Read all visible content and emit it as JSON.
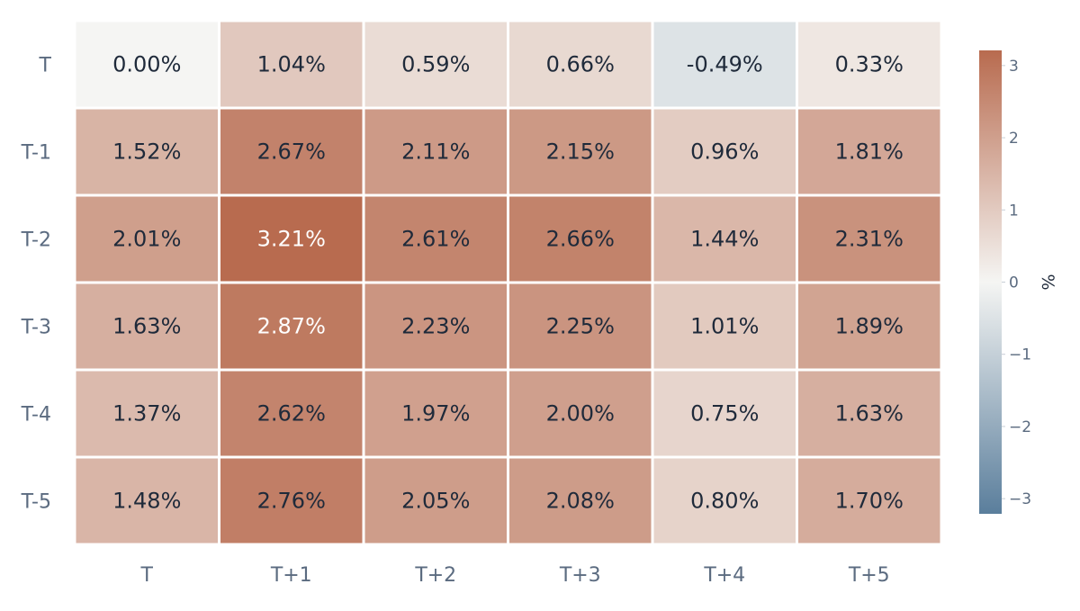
{
  "chart_data": {
    "type": "heatmap",
    "title": "",
    "xlabel": "",
    "ylabel": "",
    "x_categories": [
      "T",
      "T+1",
      "T+2",
      "T+3",
      "T+4",
      "T+5"
    ],
    "y_categories": [
      "T",
      "T-1",
      "T-2",
      "T-3",
      "T-4",
      "T-5"
    ],
    "values": [
      [
        0.0,
        1.04,
        0.59,
        0.66,
        -0.49,
        0.33
      ],
      [
        1.52,
        2.67,
        2.11,
        2.15,
        0.96,
        1.81
      ],
      [
        2.01,
        3.21,
        2.61,
        2.66,
        1.44,
        2.31
      ],
      [
        1.63,
        2.87,
        2.23,
        2.25,
        1.01,
        1.89
      ],
      [
        1.37,
        2.62,
        1.97,
        2.0,
        0.75,
        1.63
      ],
      [
        1.48,
        2.76,
        2.05,
        2.08,
        0.8,
        1.7
      ]
    ],
    "cell_labels": [
      [
        "0.00%",
        "1.04%",
        "0.59%",
        "0.66%",
        "-0.49%",
        "0.33%"
      ],
      [
        "1.52%",
        "2.67%",
        "2.11%",
        "2.15%",
        "0.96%",
        "1.81%"
      ],
      [
        "2.01%",
        "3.21%",
        "2.61%",
        "2.66%",
        "1.44%",
        "2.31%"
      ],
      [
        "1.63%",
        "2.87%",
        "2.23%",
        "2.25%",
        "1.01%",
        "1.89%"
      ],
      [
        "1.37%",
        "2.62%",
        "1.97%",
        "2.00%",
        "0.75%",
        "1.63%"
      ],
      [
        "1.48%",
        "2.76%",
        "2.05%",
        "2.08%",
        "0.80%",
        "1.70%"
      ]
    ],
    "colorbar": {
      "title": "%",
      "range": [
        -3.21,
        3.21
      ],
      "ticks": [
        3,
        2,
        1,
        0,
        -1,
        -2,
        -3
      ],
      "tick_labels": [
        "3",
        "2",
        "1",
        "0",
        "−1",
        "−2",
        "−3"
      ],
      "colors": {
        "low": "#5a7e9c",
        "mid": "#f5f5f3",
        "high": "#b86b4f"
      }
    },
    "label_colors": {
      "dark": "#1f2a3a",
      "light": "#ffffff"
    }
  }
}
